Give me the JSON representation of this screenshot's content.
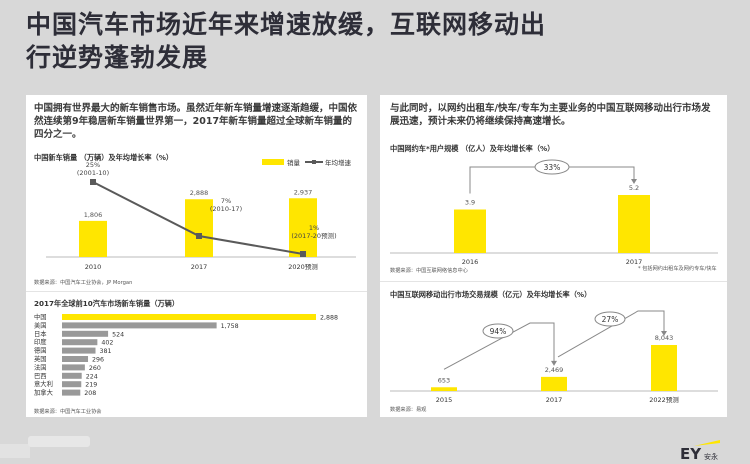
{
  "title_line1": "中国汽车市场近年来增速放缓，互联网移动出",
  "title_line2": "行逆势蓬勃发展",
  "left": {
    "intro": "中国拥有世界最大的新车销售市场。虽然近年新车销量增速逐渐趋缓，中国依然连续第9年稳居新车销量世界第一，2017年新车销量超过全球新车销量的四分之一。",
    "chart1_source": "数据来源：中国汽车工业协会，JP Morgan",
    "chart2_source": "数据来源：中国汽车工业协会"
  },
  "right": {
    "intro": "与此同时，以网约出租车/快车/专车为主要业务的中国互联网移动出行市场发展迅速，预计未来仍将继续保持高速增长。",
    "chart3_source": "数据来源：中国互联网络信息中心",
    "chart3_note": "* 包括网约出租车及网约专车/快车",
    "chart4_source": "数据来源：易观"
  },
  "brand": {
    "logo": "EY",
    "sub": "安永",
    "accent": "#ffe600"
  },
  "colors": {
    "bar": "#ffe600",
    "line": "#5a5a5a",
    "hbar": "#999999"
  },
  "chart_data": [
    {
      "type": "bar",
      "title": "中国新车销量 （万辆）及年均增长率（%）",
      "categories": [
        "2010",
        "2017",
        "2020预测"
      ],
      "series": [
        {
          "name": "销量",
          "values": [
            1806,
            2888,
            2937
          ]
        },
        {
          "name": "年均增速",
          "values": [
            25,
            7,
            1
          ],
          "labels": [
            "25%\n(2001-10)",
            "7%\n(2010-17)",
            "1%\n(2017-20预测)"
          ]
        }
      ]
    },
    {
      "type": "bar",
      "title": "2017年全球前10汽车市场新车销量（万辆）",
      "orientation": "horizontal",
      "categories": [
        "中国",
        "美国",
        "日本",
        "印度",
        "德国",
        "英国",
        "法国",
        "巴西",
        "意大利",
        "加拿大"
      ],
      "values": [
        2888,
        1758,
        524,
        402,
        381,
        296,
        260,
        224,
        219,
        208
      ]
    },
    {
      "type": "bar",
      "title": "中国网约车*用户规模 （亿人）及年均增长率（%）",
      "categories": [
        "2016",
        "2017"
      ],
      "values": [
        3.9,
        5.2
      ],
      "annotations": [
        "33%"
      ]
    },
    {
      "type": "bar",
      "title": "中国互联网移动出行市场交易规模（亿元）及年均增长率（%）",
      "categories": [
        "2015",
        "2017",
        "2022预测"
      ],
      "values": [
        653,
        2469,
        8043
      ],
      "annotations": [
        "94%",
        "27%"
      ]
    }
  ]
}
